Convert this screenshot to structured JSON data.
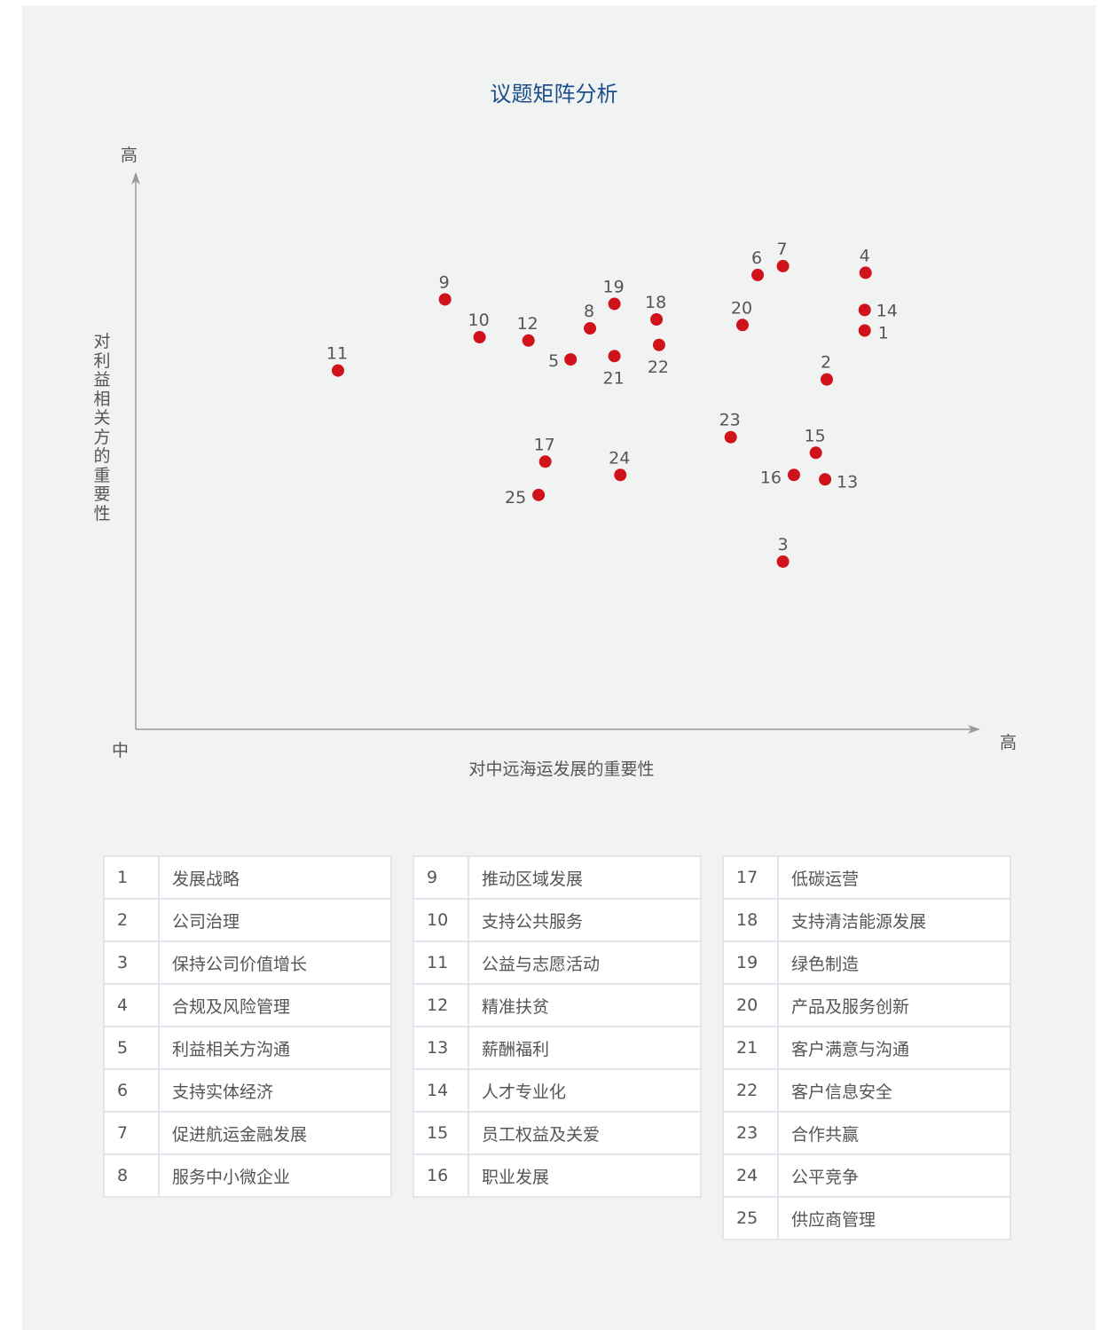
{
  "chart_data": {
    "type": "scatter",
    "title": "议题矩阵分析",
    "xlabel": "对中远海运发展的重要性",
    "ylabel": "对利益相关方的重要性",
    "x_axis_start_label": "中",
    "x_axis_end_label": "高",
    "y_axis_end_label": "高",
    "point_color": "#d0121b",
    "axis_color": "#999999",
    "title_color": "#1a4f8b",
    "points": [
      {
        "id": "1",
        "x": 8.65,
        "y": 7.18
      },
      {
        "id": "2",
        "x": 8.2,
        "y": 6.3
      },
      {
        "id": "3",
        "x": 7.68,
        "y": 3.02
      },
      {
        "id": "4",
        "x": 8.66,
        "y": 8.22
      },
      {
        "id": "5",
        "x": 5.16,
        "y": 6.66
      },
      {
        "id": "6",
        "x": 7.38,
        "y": 8.18
      },
      {
        "id": "7",
        "x": 7.68,
        "y": 8.34
      },
      {
        "id": "8",
        "x": 5.39,
        "y": 7.22
      },
      {
        "id": "9",
        "x": 3.67,
        "y": 7.74
      },
      {
        "id": "10",
        "x": 4.08,
        "y": 7.06
      },
      {
        "id": "11",
        "x": 2.4,
        "y": 6.46
      },
      {
        "id": "12",
        "x": 4.66,
        "y": 7.0
      },
      {
        "id": "13",
        "x": 8.18,
        "y": 4.5
      },
      {
        "id": "14",
        "x": 8.65,
        "y": 7.55
      },
      {
        "id": "15",
        "x": 8.07,
        "y": 4.98
      },
      {
        "id": "16",
        "x": 7.81,
        "y": 4.58
      },
      {
        "id": "17",
        "x": 4.86,
        "y": 4.82
      },
      {
        "id": "18",
        "x": 6.18,
        "y": 7.38
      },
      {
        "id": "19",
        "x": 5.68,
        "y": 7.66
      },
      {
        "id": "20",
        "x": 7.2,
        "y": 7.28
      },
      {
        "id": "21",
        "x": 5.68,
        "y": 6.72
      },
      {
        "id": "22",
        "x": 6.21,
        "y": 6.92
      },
      {
        "id": "23",
        "x": 7.06,
        "y": 5.26
      },
      {
        "id": "24",
        "x": 5.75,
        "y": 4.58
      },
      {
        "id": "25",
        "x": 4.78,
        "y": 4.22
      }
    ]
  },
  "legend": [
    {
      "num": "1",
      "label": "发展战略"
    },
    {
      "num": "2",
      "label": "公司治理"
    },
    {
      "num": "3",
      "label": "保持公司价值增长"
    },
    {
      "num": "4",
      "label": "合规及风险管理"
    },
    {
      "num": "5",
      "label": "利益相关方沟通"
    },
    {
      "num": "6",
      "label": "支持实体经济"
    },
    {
      "num": "7",
      "label": "促进航运金融发展"
    },
    {
      "num": "8",
      "label": "服务中小微企业"
    },
    {
      "num": "9",
      "label": "推动区域发展"
    },
    {
      "num": "10",
      "label": "支持公共服务"
    },
    {
      "num": "11",
      "label": "公益与志愿活动"
    },
    {
      "num": "12",
      "label": "精准扶贫"
    },
    {
      "num": "13",
      "label": "薪酬福利"
    },
    {
      "num": "14",
      "label": "人才专业化"
    },
    {
      "num": "15",
      "label": "员工权益及关爱"
    },
    {
      "num": "16",
      "label": "职业发展"
    },
    {
      "num": "17",
      "label": "低碳运营"
    },
    {
      "num": "18",
      "label": "支持清洁能源发展"
    },
    {
      "num": "19",
      "label": "绿色制造"
    },
    {
      "num": "20",
      "label": "产品及服务创新"
    },
    {
      "num": "21",
      "label": "客户满意与沟通"
    },
    {
      "num": "22",
      "label": "客户信息安全"
    },
    {
      "num": "23",
      "label": "合作共赢"
    },
    {
      "num": "24",
      "label": "公平竞争"
    },
    {
      "num": "25",
      "label": "供应商管理"
    }
  ]
}
